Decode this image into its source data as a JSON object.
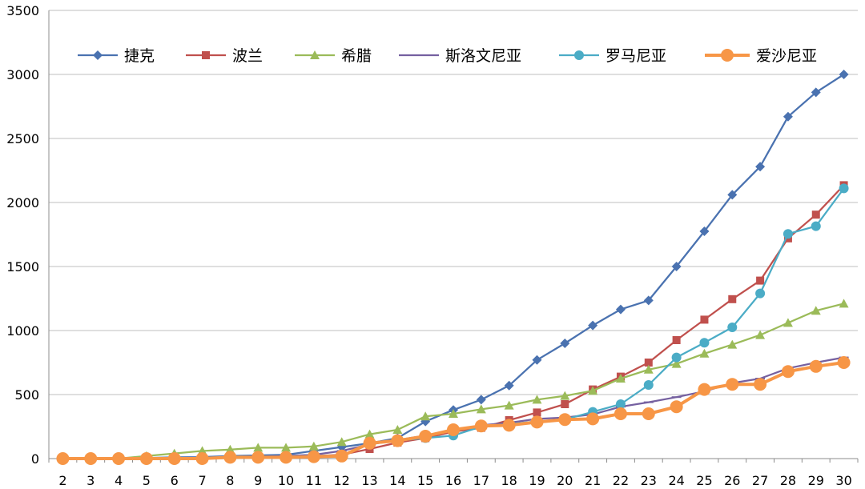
{
  "chart_data": {
    "type": "line",
    "title": "",
    "xlabel": "",
    "ylabel": "",
    "x": [
      2,
      3,
      4,
      5,
      6,
      7,
      8,
      9,
      10,
      11,
      12,
      13,
      14,
      15,
      16,
      17,
      18,
      19,
      20,
      21,
      22,
      23,
      24,
      25,
      26,
      27,
      28,
      29,
      30
    ],
    "ylim": [
      0,
      3500
    ],
    "yticks": [
      0,
      500,
      1000,
      1500,
      2000,
      2500,
      3000,
      3500
    ],
    "grid": "horizontal",
    "legend_position": "top",
    "series": [
      {
        "name": "捷克",
        "color": "#4a72b0",
        "marker": "diamond",
        "values": [
          0,
          0,
          0,
          5,
          10,
          12,
          20,
          25,
          30,
          60,
          90,
          120,
          160,
          290,
          380,
          460,
          570,
          770,
          900,
          1040,
          1165,
          1235,
          1500,
          1775,
          2060,
          2280,
          2670,
          2860,
          3000
        ]
      },
      {
        "name": "波兰",
        "color": "#c0504d",
        "marker": "square",
        "values": [
          0,
          0,
          0,
          0,
          0,
          0,
          5,
          10,
          15,
          20,
          30,
          75,
          125,
          160,
          210,
          240,
          300,
          360,
          425,
          540,
          640,
          750,
          925,
          1085,
          1245,
          1390,
          1720,
          1905,
          2135
        ]
      },
      {
        "name": "希腊",
        "color": "#9bbb59",
        "marker": "triangle",
        "values": [
          0,
          0,
          0,
          20,
          40,
          60,
          70,
          85,
          85,
          95,
          130,
          190,
          225,
          330,
          350,
          385,
          415,
          460,
          490,
          530,
          625,
          695,
          740,
          820,
          890,
          965,
          1060,
          1155,
          1210
        ]
      },
      {
        "name": "斯洛文尼亚",
        "color": "#7560a0",
        "marker": "dash",
        "values": [
          0,
          0,
          0,
          0,
          0,
          0,
          10,
          15,
          20,
          30,
          60,
          110,
          145,
          180,
          220,
          260,
          280,
          310,
          320,
          345,
          405,
          440,
          480,
          525,
          590,
          625,
          705,
          750,
          790
        ]
      },
      {
        "name": "罗马尼亚",
        "color": "#4bacc6",
        "marker": "circle",
        "values": [
          0,
          0,
          0,
          0,
          0,
          0,
          5,
          10,
          15,
          20,
          25,
          120,
          140,
          160,
          180,
          250,
          270,
          290,
          305,
          365,
          425,
          575,
          790,
          905,
          1025,
          1290,
          1755,
          1815,
          2110
        ]
      },
      {
        "name": "爱沙尼亚",
        "color": "#f79646",
        "marker": "circle-large",
        "values": [
          0,
          0,
          0,
          0,
          0,
          0,
          10,
          10,
          10,
          15,
          20,
          120,
          140,
          175,
          225,
          255,
          260,
          285,
          305,
          310,
          350,
          350,
          405,
          540,
          580,
          580,
          680,
          720,
          750
        ]
      }
    ]
  }
}
